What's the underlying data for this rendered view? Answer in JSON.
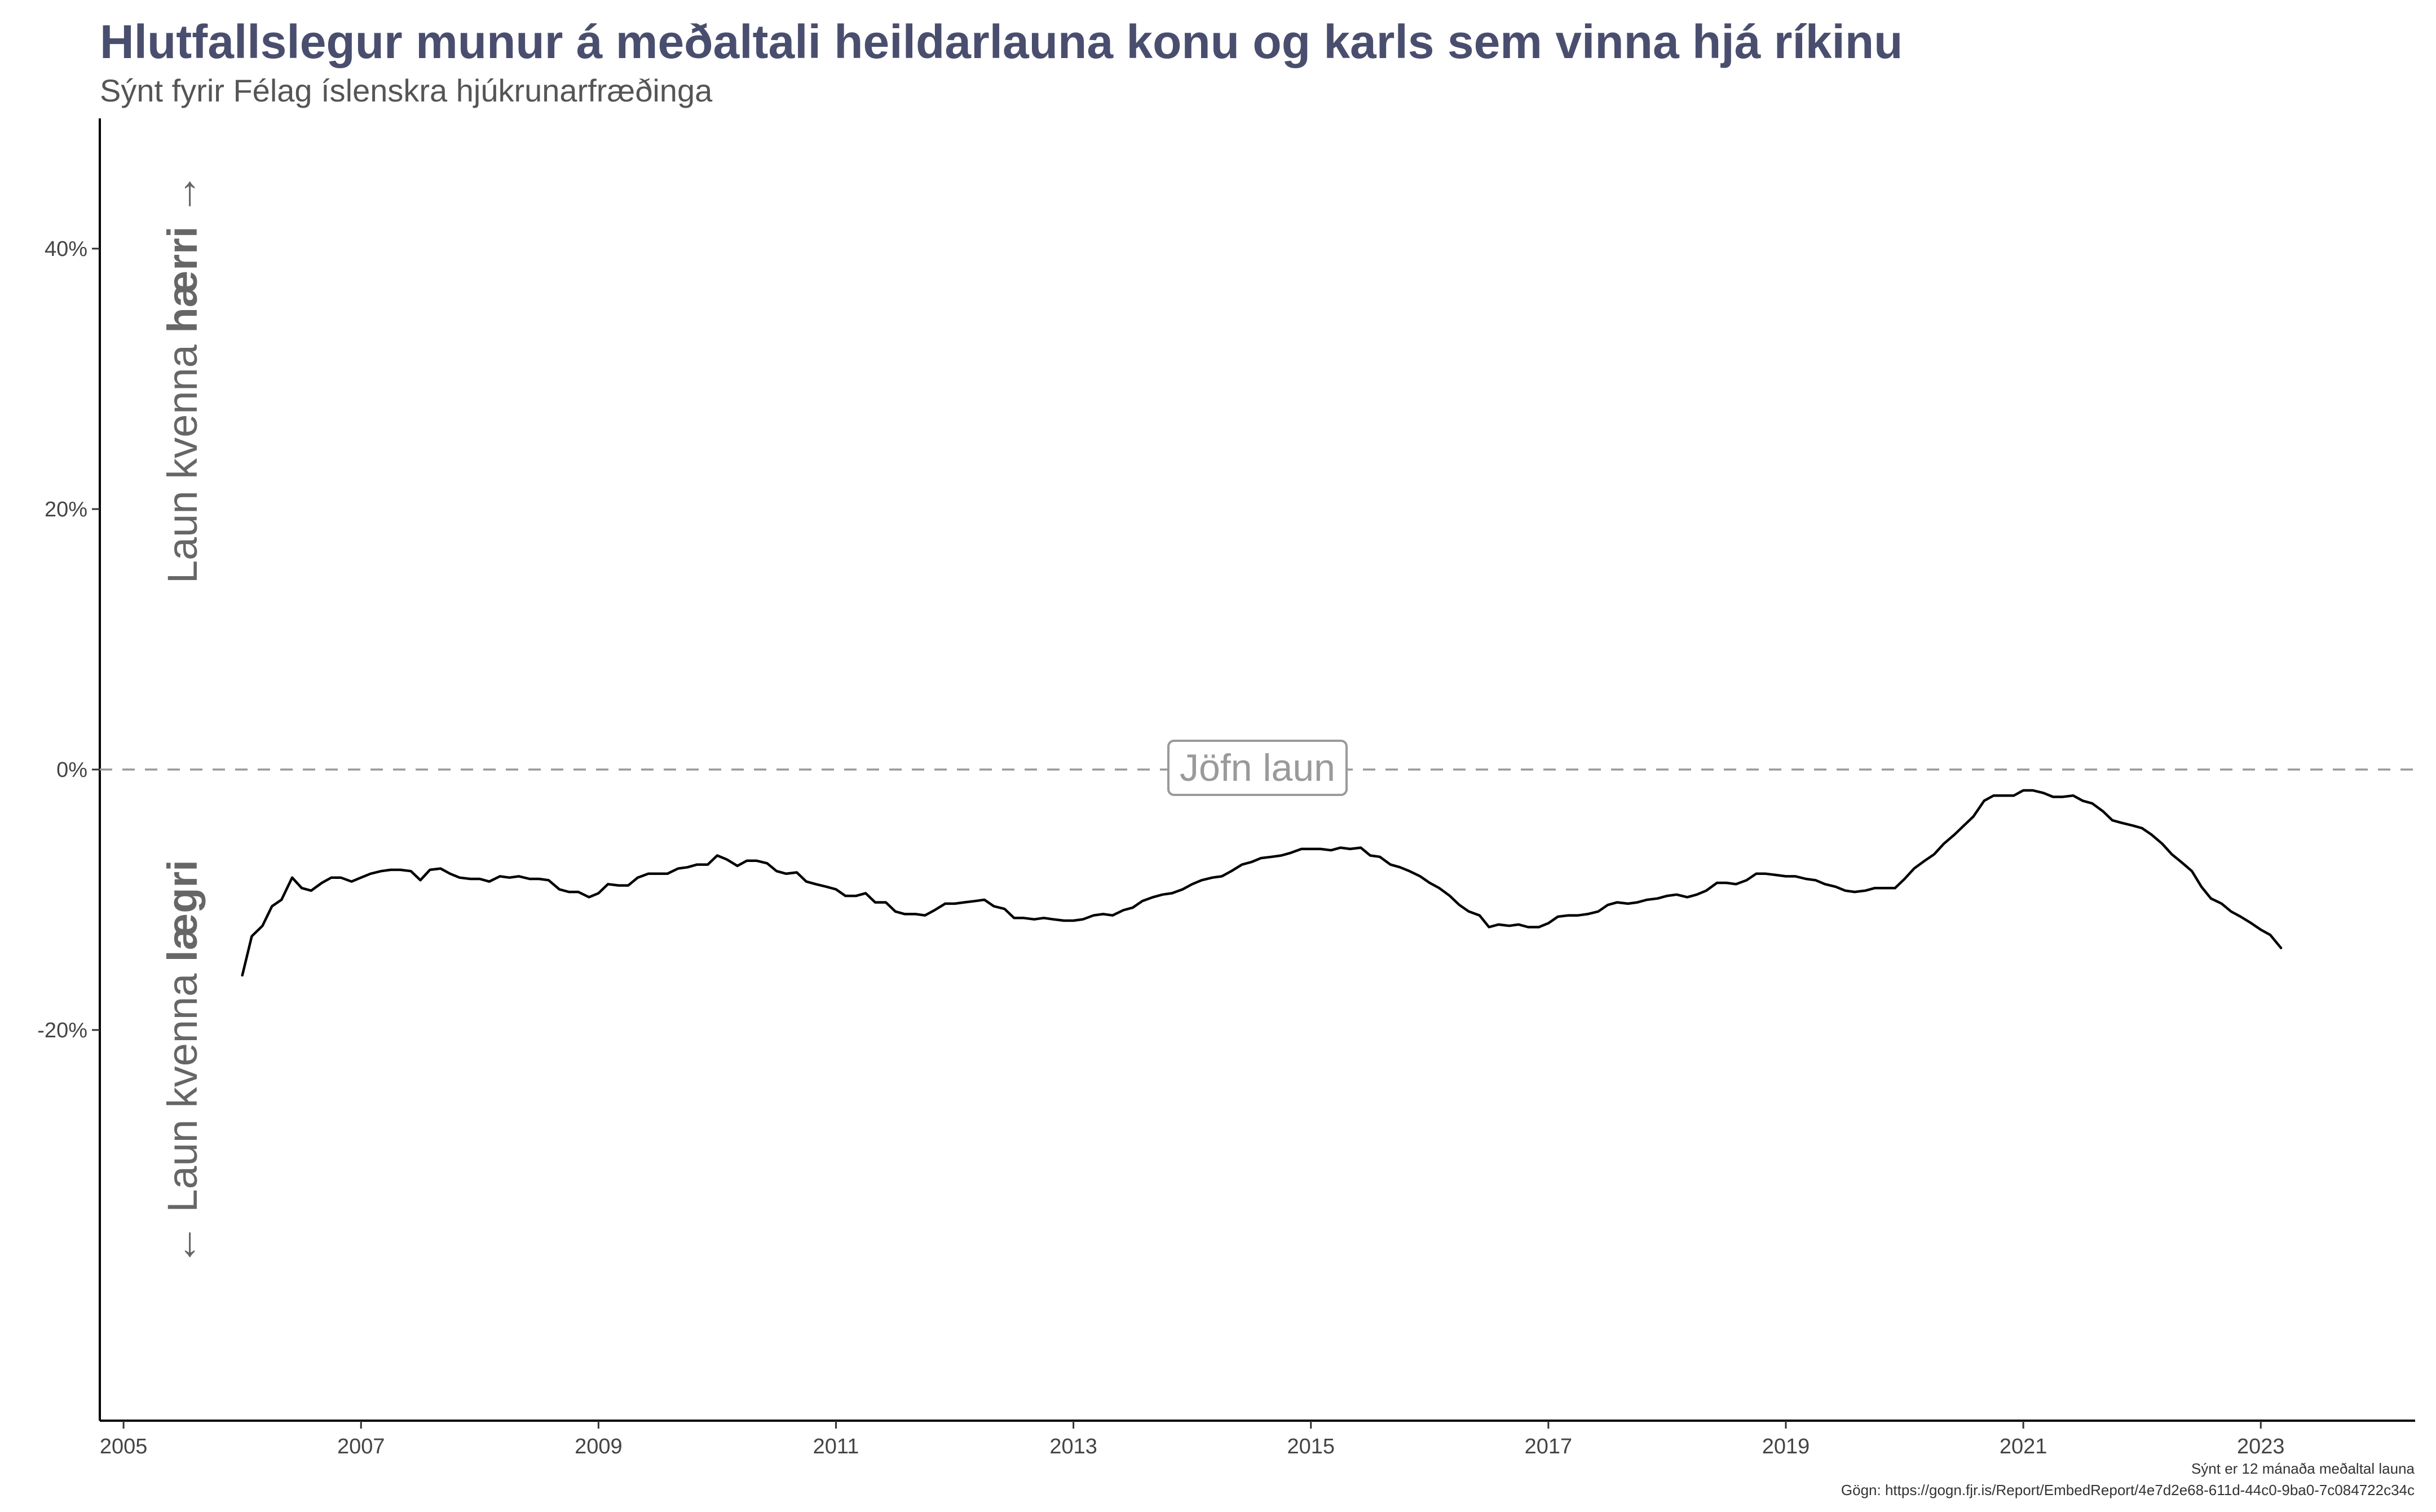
{
  "header": {
    "title": "Hlutfallslegur munur á meðaltali heildarlauna konu og karls sem vinna hjá ríkinu",
    "subtitle": "Sýnt fyrir Félag íslenskra hjúkrunarfræðinga"
  },
  "caption": {
    "line1": "Sýnt er 12 mánaða meðaltal launa",
    "line2": "Gögn: https://gogn.fjr.is/Report/EmbedReport/4e7d2e68-611d-44c0-9ba0-7c084722c34c"
  },
  "labels": {
    "higher_prefix": "Laun kvenna ",
    "higher_strong": "hærri",
    "higher_arrow": " →",
    "lower_arrow": "← ",
    "lower_prefix": "Laun kvenna ",
    "lower_strong": "lægri",
    "equal": "Jöfn laun"
  },
  "chart_data": {
    "type": "line",
    "xlim": [
      2004.8,
      2024.3
    ],
    "ylim": [
      -0.5,
      0.5
    ],
    "x_ticks": [
      2005,
      2007,
      2009,
      2011,
      2013,
      2015,
      2017,
      2019,
      2021,
      2023
    ],
    "x_tick_labels": [
      "2005",
      "2007",
      "2009",
      "2011",
      "2013",
      "2015",
      "2017",
      "2019",
      "2021",
      "2023"
    ],
    "y_ticks": [
      -0.2,
      0,
      0.2,
      0.4
    ],
    "y_tick_labels": [
      "-20%",
      "0%",
      "20%",
      "40%"
    ],
    "reference_line": {
      "y": 0,
      "style": "dashed",
      "label": "Jöfn laun"
    },
    "grid": false,
    "line_color": "#000000",
    "series": [
      {
        "x": [
          2006.0,
          2006.08,
          2006.17,
          2006.25,
          2006.33,
          2006.42,
          2006.5,
          2006.58,
          2006.67,
          2006.75,
          2006.83,
          2006.92,
          2007.0,
          2007.08,
          2007.17,
          2007.25,
          2007.33,
          2007.42,
          2007.5,
          2007.58,
          2007.67,
          2007.75,
          2007.83,
          2007.92,
          2008.0,
          2008.08,
          2008.17,
          2008.25,
          2008.33,
          2008.42,
          2008.5,
          2008.58,
          2008.67,
          2008.75,
          2008.83,
          2008.92,
          2009.0,
          2009.08,
          2009.17,
          2009.25,
          2009.33,
          2009.42,
          2009.5,
          2009.58,
          2009.67,
          2009.75,
          2009.83,
          2009.92,
          2010.0,
          2010.08,
          2010.17,
          2010.25,
          2010.33,
          2010.42,
          2010.5,
          2010.58,
          2010.67,
          2010.75,
          2010.83,
          2010.92,
          2011.0,
          2011.08,
          2011.17,
          2011.25,
          2011.33,
          2011.42,
          2011.5,
          2011.58,
          2011.67,
          2011.75,
          2011.83,
          2011.92,
          2012.0,
          2012.08,
          2012.17,
          2012.25,
          2012.33,
          2012.42,
          2012.5,
          2012.58,
          2012.67,
          2012.75,
          2012.83,
          2012.92,
          2013.0,
          2013.08,
          2013.17,
          2013.25,
          2013.33,
          2013.42,
          2013.5,
          2013.58,
          2013.67,
          2013.75,
          2013.83,
          2013.92,
          2014.0,
          2014.08,
          2014.17,
          2014.25,
          2014.33,
          2014.42,
          2014.5,
          2014.58,
          2014.67,
          2014.75,
          2014.83,
          2014.92,
          2015.0,
          2015.08,
          2015.17,
          2015.25,
          2015.33,
          2015.42,
          2015.5,
          2015.58,
          2015.67,
          2015.75,
          2015.83,
          2015.92,
          2016.0,
          2016.08,
          2016.17,
          2016.25,
          2016.33,
          2016.42,
          2016.5,
          2016.58,
          2016.67,
          2016.75,
          2016.83,
          2016.92,
          2017.0,
          2017.08,
          2017.17,
          2017.25,
          2017.33,
          2017.42,
          2017.5,
          2017.58,
          2017.67,
          2017.75,
          2017.83,
          2017.92,
          2018.0,
          2018.08,
          2018.17,
          2018.25,
          2018.33,
          2018.42,
          2018.5,
          2018.58,
          2018.67,
          2018.75,
          2018.83,
          2018.92,
          2019.0,
          2019.08,
          2019.17,
          2019.25,
          2019.33,
          2019.42,
          2019.5,
          2019.58,
          2019.67,
          2019.75,
          2019.83,
          2019.92,
          2020.0,
          2020.08,
          2020.17,
          2020.25,
          2020.33,
          2020.42,
          2020.5,
          2020.58,
          2020.67,
          2020.75,
          2020.83,
          2020.92,
          2021.0,
          2021.08,
          2021.17,
          2021.25,
          2021.33,
          2021.42,
          2021.5,
          2021.58,
          2021.67,
          2021.75,
          2021.83,
          2021.92,
          2022.0,
          2022.08,
          2022.17,
          2022.25,
          2022.33,
          2022.42,
          2022.5,
          2022.58,
          2022.67,
          2022.75,
          2022.83,
          2022.92,
          2023.0,
          2023.08,
          2023.17
        ],
        "y": [
          -0.158,
          -0.128,
          -0.12,
          -0.105,
          -0.1,
          -0.083,
          -0.091,
          -0.093,
          -0.087,
          -0.083,
          -0.083,
          -0.086,
          -0.083,
          -0.08,
          -0.078,
          -0.077,
          -0.077,
          -0.078,
          -0.085,
          -0.077,
          -0.076,
          -0.08,
          -0.083,
          -0.084,
          -0.084,
          -0.086,
          -0.082,
          -0.083,
          -0.082,
          -0.084,
          -0.084,
          -0.085,
          -0.092,
          -0.094,
          -0.094,
          -0.098,
          -0.095,
          -0.088,
          -0.089,
          -0.089,
          -0.083,
          -0.08,
          -0.08,
          -0.08,
          -0.076,
          -0.075,
          -0.073,
          -0.073,
          -0.066,
          -0.069,
          -0.074,
          -0.07,
          -0.07,
          -0.072,
          -0.078,
          -0.08,
          -0.079,
          -0.086,
          -0.088,
          -0.09,
          -0.092,
          -0.097,
          -0.097,
          -0.095,
          -0.102,
          -0.102,
          -0.109,
          -0.111,
          -0.111,
          -0.112,
          -0.108,
          -0.103,
          -0.103,
          -0.102,
          -0.101,
          -0.1,
          -0.105,
          -0.107,
          -0.114,
          -0.114,
          -0.115,
          -0.114,
          -0.115,
          -0.116,
          -0.116,
          -0.115,
          -0.112,
          -0.111,
          -0.112,
          -0.108,
          -0.106,
          -0.101,
          -0.098,
          -0.096,
          -0.095,
          -0.092,
          -0.088,
          -0.085,
          -0.083,
          -0.082,
          -0.078,
          -0.073,
          -0.071,
          -0.068,
          -0.067,
          -0.066,
          -0.064,
          -0.061,
          -0.061,
          -0.061,
          -0.062,
          -0.06,
          -0.061,
          -0.06,
          -0.066,
          -0.067,
          -0.073,
          -0.075,
          -0.078,
          -0.082,
          -0.087,
          -0.091,
          -0.097,
          -0.104,
          -0.109,
          -0.112,
          -0.121,
          -0.119,
          -0.12,
          -0.119,
          -0.121,
          -0.121,
          -0.118,
          -0.113,
          -0.112,
          -0.112,
          -0.111,
          -0.109,
          -0.104,
          -0.102,
          -0.103,
          -0.102,
          -0.1,
          -0.099,
          -0.097,
          -0.096,
          -0.098,
          -0.096,
          -0.093,
          -0.087,
          -0.087,
          -0.088,
          -0.085,
          -0.08,
          -0.08,
          -0.081,
          -0.082,
          -0.082,
          -0.084,
          -0.085,
          -0.088,
          -0.09,
          -0.093,
          -0.094,
          -0.093,
          -0.091,
          -0.091,
          -0.091,
          -0.084,
          -0.076,
          -0.07,
          -0.065,
          -0.057,
          -0.05,
          -0.043,
          -0.036,
          -0.024,
          -0.02,
          -0.02,
          -0.02,
          -0.016,
          -0.016,
          -0.018,
          -0.021,
          -0.021,
          -0.02,
          -0.024,
          -0.026,
          -0.032,
          -0.039,
          -0.041,
          -0.043,
          -0.045,
          -0.05,
          -0.057,
          -0.065,
          -0.071,
          -0.078,
          -0.09,
          -0.099,
          -0.103,
          -0.109,
          -0.113,
          -0.118,
          -0.123,
          -0.127,
          -0.137
        ]
      }
    ]
  }
}
